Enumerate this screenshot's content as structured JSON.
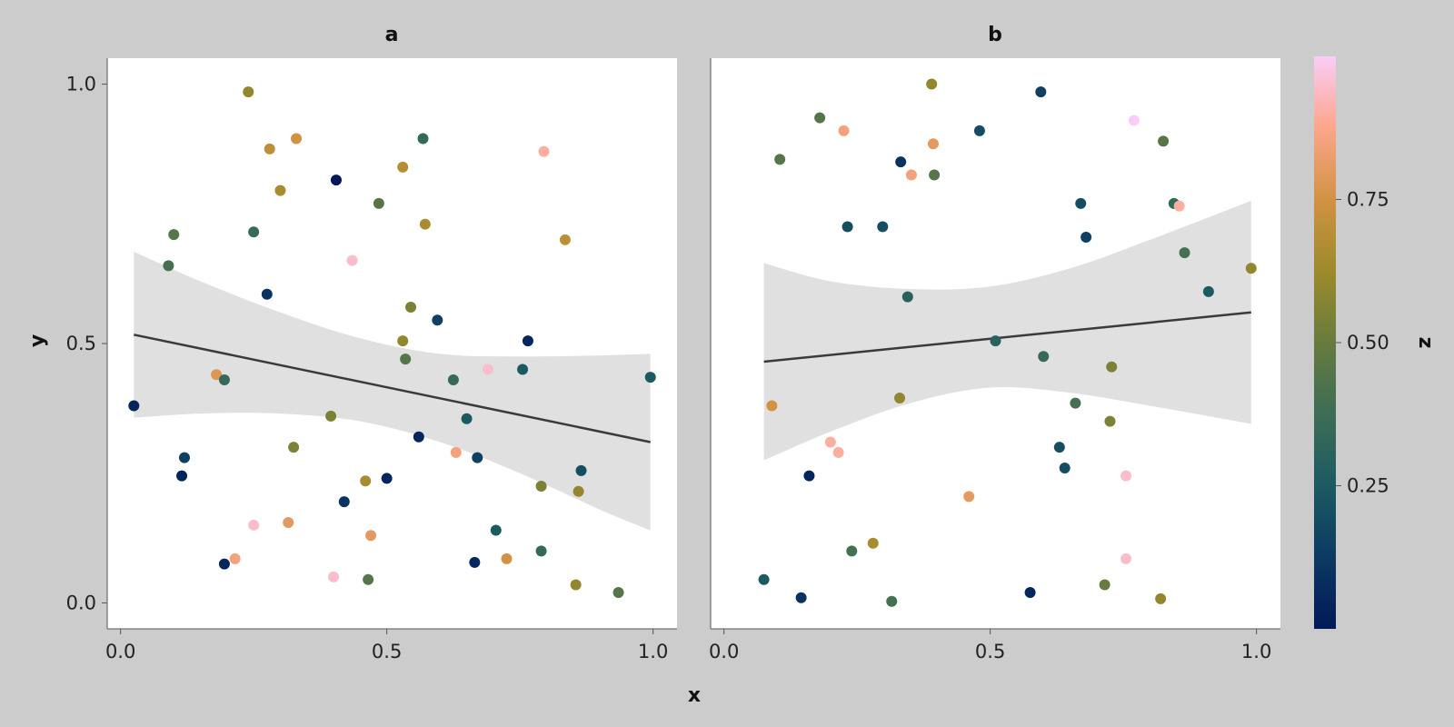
{
  "figure": {
    "xlabel": "x",
    "ylabel": "y",
    "colorbar": {
      "label": "z",
      "ticks": [
        0.25,
        0.5,
        0.75
      ],
      "tick_labels": [
        "0.25",
        "0.50",
        "0.75"
      ],
      "range": [
        0.0,
        1.0
      ]
    },
    "colors": {
      "background": "#cccccc",
      "panel": "#ffffff",
      "band": "#e0e0e0",
      "fit_line": "#3a3a3a"
    }
  },
  "chart_data": [
    {
      "type": "scatter",
      "title": "a",
      "xlim": [
        -0.025,
        1.045
      ],
      "ylim": [
        -0.05,
        1.05
      ],
      "x_ticks": [
        0.0,
        0.5,
        1.0
      ],
      "x_tick_labels": [
        "0.0",
        "0.5",
        "1.0"
      ],
      "y_ticks": [
        0.0,
        0.5,
        1.0
      ],
      "y_tick_labels": [
        "0.0",
        "0.5",
        "1.0"
      ],
      "regression": {
        "x": [
          0.025,
          0.995
        ],
        "y": [
          0.517,
          0.31
        ]
      },
      "band": {
        "x": [
          0.025,
          0.15,
          0.3,
          0.45,
          0.6,
          0.75,
          0.9,
          0.995
        ],
        "upper": [
          0.677,
          0.62,
          0.56,
          0.51,
          0.48,
          0.475,
          0.477,
          0.48
        ],
        "lower": [
          0.357,
          0.365,
          0.365,
          0.35,
          0.31,
          0.25,
          0.18,
          0.14
        ]
      },
      "points": [
        {
          "x": 0.025,
          "y": 0.38,
          "z": 0.05
        },
        {
          "x": 0.09,
          "y": 0.65,
          "z": 0.4
        },
        {
          "x": 0.1,
          "y": 0.71,
          "z": 0.45
        },
        {
          "x": 0.115,
          "y": 0.245,
          "z": 0.05
        },
        {
          "x": 0.12,
          "y": 0.28,
          "z": 0.15
        },
        {
          "x": 0.18,
          "y": 0.44,
          "z": 0.78
        },
        {
          "x": 0.195,
          "y": 0.43,
          "z": 0.35
        },
        {
          "x": 0.195,
          "y": 0.075,
          "z": 0.05
        },
        {
          "x": 0.215,
          "y": 0.085,
          "z": 0.85
        },
        {
          "x": 0.24,
          "y": 0.985,
          "z": 0.6
        },
        {
          "x": 0.25,
          "y": 0.715,
          "z": 0.35
        },
        {
          "x": 0.25,
          "y": 0.15,
          "z": 0.95
        },
        {
          "x": 0.275,
          "y": 0.595,
          "z": 0.1
        },
        {
          "x": 0.28,
          "y": 0.875,
          "z": 0.7
        },
        {
          "x": 0.3,
          "y": 0.795,
          "z": 0.65
        },
        {
          "x": 0.315,
          "y": 0.155,
          "z": 0.8
        },
        {
          "x": 0.325,
          "y": 0.3,
          "z": 0.55
        },
        {
          "x": 0.33,
          "y": 0.895,
          "z": 0.75
        },
        {
          "x": 0.395,
          "y": 0.36,
          "z": 0.55
        },
        {
          "x": 0.4,
          "y": 0.05,
          "z": 0.95
        },
        {
          "x": 0.405,
          "y": 0.815,
          "z": 0.0
        },
        {
          "x": 0.42,
          "y": 0.195,
          "z": 0.1
        },
        {
          "x": 0.435,
          "y": 0.66,
          "z": 0.95
        },
        {
          "x": 0.46,
          "y": 0.235,
          "z": 0.65
        },
        {
          "x": 0.465,
          "y": 0.045,
          "z": 0.45
        },
        {
          "x": 0.47,
          "y": 0.13,
          "z": 0.8
        },
        {
          "x": 0.485,
          "y": 0.77,
          "z": 0.45
        },
        {
          "x": 0.5,
          "y": 0.24,
          "z": 0.05
        },
        {
          "x": 0.53,
          "y": 0.84,
          "z": 0.68
        },
        {
          "x": 0.53,
          "y": 0.505,
          "z": 0.6
        },
        {
          "x": 0.535,
          "y": 0.47,
          "z": 0.45
        },
        {
          "x": 0.545,
          "y": 0.57,
          "z": 0.55
        },
        {
          "x": 0.56,
          "y": 0.32,
          "z": 0.05
        },
        {
          "x": 0.568,
          "y": 0.895,
          "z": 0.35
        },
        {
          "x": 0.572,
          "y": 0.73,
          "z": 0.65
        },
        {
          "x": 0.595,
          "y": 0.545,
          "z": 0.15
        },
        {
          "x": 0.625,
          "y": 0.43,
          "z": 0.35
        },
        {
          "x": 0.63,
          "y": 0.29,
          "z": 0.85
        },
        {
          "x": 0.65,
          "y": 0.355,
          "z": 0.25
        },
        {
          "x": 0.665,
          "y": 0.078,
          "z": 0.05
        },
        {
          "x": 0.67,
          "y": 0.28,
          "z": 0.15
        },
        {
          "x": 0.69,
          "y": 0.45,
          "z": 0.95
        },
        {
          "x": 0.705,
          "y": 0.14,
          "z": 0.25
        },
        {
          "x": 0.725,
          "y": 0.085,
          "z": 0.75
        },
        {
          "x": 0.755,
          "y": 0.45,
          "z": 0.25
        },
        {
          "x": 0.765,
          "y": 0.505,
          "z": 0.05
        },
        {
          "x": 0.79,
          "y": 0.225,
          "z": 0.55
        },
        {
          "x": 0.79,
          "y": 0.1,
          "z": 0.35
        },
        {
          "x": 0.795,
          "y": 0.87,
          "z": 0.9
        },
        {
          "x": 0.835,
          "y": 0.7,
          "z": 0.7
        },
        {
          "x": 0.855,
          "y": 0.035,
          "z": 0.6
        },
        {
          "x": 0.86,
          "y": 0.215,
          "z": 0.6
        },
        {
          "x": 0.865,
          "y": 0.255,
          "z": 0.2
        },
        {
          "x": 0.935,
          "y": 0.02,
          "z": 0.45
        },
        {
          "x": 0.995,
          "y": 0.435,
          "z": 0.25
        }
      ]
    },
    {
      "type": "scatter",
      "title": "b",
      "xlim": [
        -0.025,
        1.045
      ],
      "ylim": [
        -0.05,
        1.05
      ],
      "x_ticks": [
        0.0,
        0.5,
        1.0
      ],
      "x_tick_labels": [
        "0.0",
        "0.5",
        "1.0"
      ],
      "y_ticks": [
        0.0,
        0.5,
        1.0
      ],
      "y_tick_labels": [],
      "regression": {
        "x": [
          0.075,
          0.99
        ],
        "y": [
          0.465,
          0.56
        ]
      },
      "band": {
        "x": [
          0.075,
          0.2,
          0.35,
          0.5,
          0.65,
          0.8,
          0.99
        ],
        "upper": [
          0.655,
          0.62,
          0.605,
          0.61,
          0.645,
          0.7,
          0.775
        ],
        "lower": [
          0.275,
          0.33,
          0.385,
          0.415,
          0.405,
          0.38,
          0.345
        ]
      },
      "points": [
        {
          "x": 0.075,
          "y": 0.045,
          "z": 0.25
        },
        {
          "x": 0.09,
          "y": 0.38,
          "z": 0.75
        },
        {
          "x": 0.105,
          "y": 0.855,
          "z": 0.45
        },
        {
          "x": 0.145,
          "y": 0.01,
          "z": 0.1
        },
        {
          "x": 0.16,
          "y": 0.245,
          "z": 0.05
        },
        {
          "x": 0.18,
          "y": 0.935,
          "z": 0.45
        },
        {
          "x": 0.2,
          "y": 0.31,
          "z": 0.9
        },
        {
          "x": 0.215,
          "y": 0.29,
          "z": 0.9
        },
        {
          "x": 0.225,
          "y": 0.91,
          "z": 0.85
        },
        {
          "x": 0.232,
          "y": 0.725,
          "z": 0.2
        },
        {
          "x": 0.24,
          "y": 0.1,
          "z": 0.4
        },
        {
          "x": 0.28,
          "y": 0.115,
          "z": 0.65
        },
        {
          "x": 0.298,
          "y": 0.725,
          "z": 0.2
        },
        {
          "x": 0.315,
          "y": 0.003,
          "z": 0.4
        },
        {
          "x": 0.33,
          "y": 0.395,
          "z": 0.6
        },
        {
          "x": 0.332,
          "y": 0.85,
          "z": 0.1
        },
        {
          "x": 0.345,
          "y": 0.59,
          "z": 0.3
        },
        {
          "x": 0.352,
          "y": 0.825,
          "z": 0.85
        },
        {
          "x": 0.39,
          "y": 1.0,
          "z": 0.6
        },
        {
          "x": 0.393,
          "y": 0.885,
          "z": 0.8
        },
        {
          "x": 0.395,
          "y": 0.825,
          "z": 0.45
        },
        {
          "x": 0.46,
          "y": 0.205,
          "z": 0.8
        },
        {
          "x": 0.48,
          "y": 0.91,
          "z": 0.2
        },
        {
          "x": 0.51,
          "y": 0.505,
          "z": 0.3
        },
        {
          "x": 0.575,
          "y": 0.02,
          "z": 0.05
        },
        {
          "x": 0.595,
          "y": 0.985,
          "z": 0.15
        },
        {
          "x": 0.6,
          "y": 0.475,
          "z": 0.35
        },
        {
          "x": 0.63,
          "y": 0.3,
          "z": 0.2
        },
        {
          "x": 0.64,
          "y": 0.26,
          "z": 0.2
        },
        {
          "x": 0.66,
          "y": 0.385,
          "z": 0.4
        },
        {
          "x": 0.67,
          "y": 0.77,
          "z": 0.2
        },
        {
          "x": 0.68,
          "y": 0.705,
          "z": 0.15
        },
        {
          "x": 0.715,
          "y": 0.035,
          "z": 0.5
        },
        {
          "x": 0.725,
          "y": 0.35,
          "z": 0.55
        },
        {
          "x": 0.728,
          "y": 0.455,
          "z": 0.55
        },
        {
          "x": 0.755,
          "y": 0.245,
          "z": 0.95
        },
        {
          "x": 0.755,
          "y": 0.085,
          "z": 0.95
        },
        {
          "x": 0.77,
          "y": 0.93,
          "z": 1.0
        },
        {
          "x": 0.82,
          "y": 0.008,
          "z": 0.6
        },
        {
          "x": 0.825,
          "y": 0.89,
          "z": 0.45
        },
        {
          "x": 0.845,
          "y": 0.77,
          "z": 0.35
        },
        {
          "x": 0.855,
          "y": 0.765,
          "z": 0.9
        },
        {
          "x": 0.865,
          "y": 0.675,
          "z": 0.4
        },
        {
          "x": 0.91,
          "y": 0.6,
          "z": 0.25
        },
        {
          "x": 0.99,
          "y": 0.645,
          "z": 0.6
        }
      ]
    }
  ]
}
